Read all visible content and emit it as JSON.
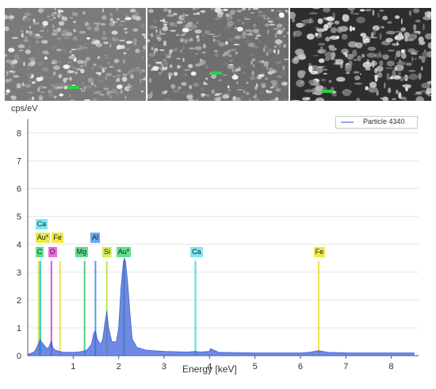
{
  "chart_data": {
    "type": "line",
    "title": "",
    "ylabel": "cps/eV",
    "xlabel": "Energy [keV]",
    "xlim": [
      0,
      8.6
    ],
    "ylim": [
      0,
      8.5
    ],
    "x_ticks": [
      1,
      2,
      3,
      4,
      5,
      6,
      7,
      8
    ],
    "y_ticks": [
      0,
      1,
      2,
      3,
      4,
      5,
      6,
      7,
      8
    ],
    "grid": true,
    "legend_position": "top-right",
    "series": [
      {
        "name": "Particle 4340",
        "color": "#3f63d8",
        "x": [
          0.0,
          0.1,
          0.15,
          0.2,
          0.25,
          0.27,
          0.3,
          0.35,
          0.4,
          0.45,
          0.5,
          0.52,
          0.55,
          0.6,
          0.65,
          0.7,
          0.75,
          0.8,
          0.9,
          1.0,
          1.1,
          1.2,
          1.25,
          1.3,
          1.4,
          1.45,
          1.49,
          1.53,
          1.6,
          1.65,
          1.7,
          1.74,
          1.78,
          1.85,
          1.95,
          2.0,
          2.05,
          2.1,
          2.12,
          2.15,
          2.2,
          2.25,
          2.3,
          2.4,
          2.6,
          3.0,
          3.5,
          3.69,
          3.8,
          4.0,
          4.02,
          4.2,
          5.0,
          6.0,
          6.2,
          6.4,
          6.6,
          7.06,
          7.5,
          8.0,
          8.5
        ],
        "y": [
          0.05,
          0.1,
          0.15,
          0.3,
          0.5,
          0.6,
          0.5,
          0.4,
          0.3,
          0.25,
          0.45,
          0.55,
          0.3,
          0.2,
          0.18,
          0.15,
          0.13,
          0.12,
          0.12,
          0.12,
          0.13,
          0.15,
          0.18,
          0.2,
          0.4,
          0.8,
          0.9,
          0.6,
          0.4,
          0.6,
          1.2,
          1.6,
          1.0,
          0.5,
          0.5,
          1.0,
          2.4,
          3.3,
          3.5,
          3.4,
          2.6,
          1.5,
          0.6,
          0.3,
          0.2,
          0.15,
          0.13,
          0.15,
          0.13,
          0.15,
          0.25,
          0.12,
          0.1,
          0.1,
          0.12,
          0.18,
          0.12,
          0.1,
          0.1,
          0.1,
          0.1
        ]
      }
    ],
    "element_peaks": [
      {
        "label": "C",
        "x": 0.28,
        "y": 3.4,
        "color": "#35d07a"
      },
      {
        "label": "O",
        "x": 0.52,
        "y": 3.4,
        "color": "#e33bd9"
      },
      {
        "label": "Fe",
        "x": 0.71,
        "y": 3.4,
        "color": "#e8e23a"
      },
      {
        "label": "Mg",
        "x": 1.25,
        "y": 3.4,
        "color": "#35d07a"
      },
      {
        "label": "Al",
        "x": 1.49,
        "y": 3.4,
        "color": "#3f8ff0"
      },
      {
        "label": "Si",
        "x": 1.74,
        "y": 3.4,
        "color": "#b8e63a"
      },
      {
        "label": "Au*",
        "x": 2.12,
        "y": 3.4,
        "color": "#35d07a"
      },
      {
        "label": "Ca",
        "x": 3.69,
        "y": 3.4,
        "color": "#3ad8e8"
      },
      {
        "label": "Fe",
        "x": 6.4,
        "y": 3.4,
        "color": "#e8e23a"
      },
      {
        "label": "Au*",
        "x": 0.24,
        "y": 3.4,
        "color": "#e8e23a"
      },
      {
        "label": "Ca",
        "x": 0.27,
        "y": 3.4,
        "color": "#3ad8e8"
      }
    ],
    "peak_labels": [
      {
        "text": "Ca",
        "color": "#7fe8f2",
        "x": 0.17,
        "row": 1
      },
      {
        "text": "Au*",
        "color": "#e8e84a",
        "x": 0.17,
        "row": 2
      },
      {
        "text": "Fe",
        "color": "#f0e84a",
        "x": 0.53,
        "row": 2
      },
      {
        "text": "Al",
        "color": "#6aa8f2",
        "x": 1.38,
        "row": 2
      },
      {
        "text": "C",
        "color": "#5ee08e",
        "x": 0.17,
        "row": 3
      },
      {
        "text": "O",
        "color": "#ef6ae4",
        "x": 0.45,
        "row": 3
      },
      {
        "text": "Mg",
        "color": "#5ee08e",
        "x": 1.04,
        "row": 3
      },
      {
        "text": "Si",
        "color": "#d2ef5a",
        "x": 1.64,
        "row": 3
      },
      {
        "text": "Au*",
        "color": "#5ee08e",
        "x": 1.95,
        "row": 3
      },
      {
        "text": "Ca",
        "color": "#7fe8f2",
        "x": 3.58,
        "row": 3
      },
      {
        "text": "Fe",
        "color": "#f0e84a",
        "x": 6.29,
        "row": 3
      }
    ]
  },
  "sem_images": [
    {
      "name": "sem-image-1"
    },
    {
      "name": "sem-image-2"
    },
    {
      "name": "sem-image-3"
    }
  ]
}
